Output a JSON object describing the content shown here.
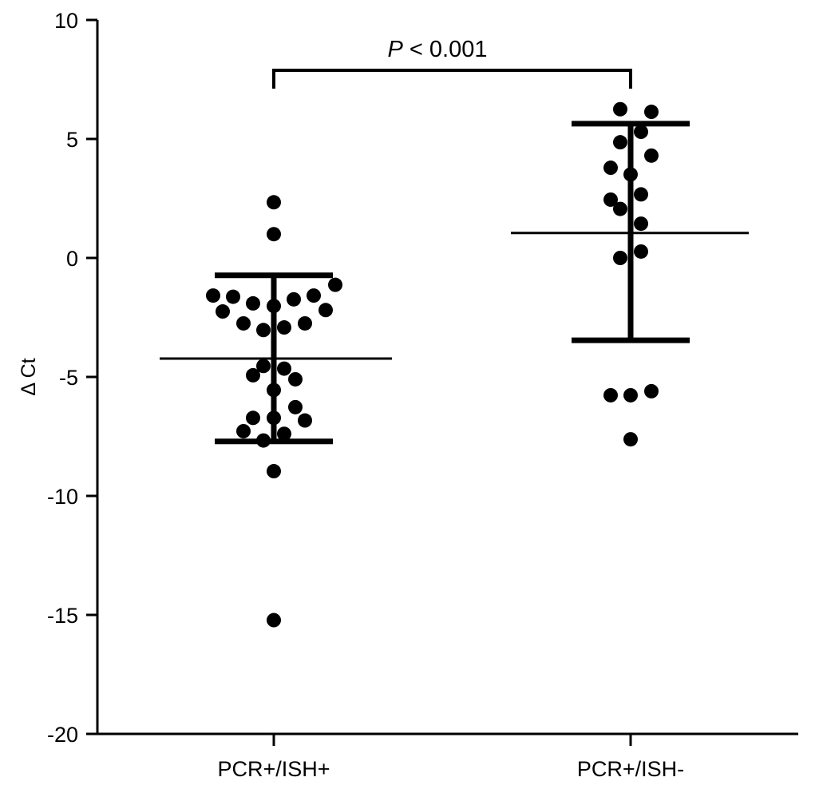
{
  "chart_data": {
    "type": "scatter",
    "title": "",
    "xlabel": "",
    "ylabel": "Δ Ct",
    "ylim": [
      -20,
      10
    ],
    "yticks": [
      "10",
      "5",
      "0",
      "-5",
      "-10",
      "-15",
      "-20"
    ],
    "ytick_values": [
      10,
      5,
      0,
      -5,
      -10,
      -15,
      -20
    ],
    "grid": false,
    "categories": [
      "PCR+/ISH+",
      "PCR+/ISH-"
    ],
    "series": [
      {
        "values": [
          2.34,
          1.0,
          -1.13,
          -1.58,
          -1.63,
          -1.91,
          -2.02,
          -1.74,
          -1.58,
          -2.25,
          -2.19,
          -2.75,
          -3.03,
          -2.92,
          -2.75,
          -4.54,
          -4.65,
          -4.93,
          -5.1,
          -5.55,
          -6.27,
          -6.72,
          -6.72,
          -6.83,
          -7.28,
          -7.39,
          -7.67,
          -8.96,
          -15.22
        ],
        "mean": -4.23,
        "sd_upper": -0.73,
        "sd_lower": -7.71
      },
      {
        "values": [
          6.25,
          6.14,
          5.3,
          4.86,
          4.3,
          3.79,
          3.51,
          2.67,
          2.45,
          2.06,
          1.44,
          0.27,
          0.0,
          -5.77,
          -5.77,
          -5.6,
          -7.62
        ],
        "mean": 1.05,
        "sd_upper": 5.64,
        "sd_lower": -3.46
      }
    ],
    "annotation": {
      "italic": "P",
      "text": " < 0.001"
    },
    "color": "#000000"
  }
}
